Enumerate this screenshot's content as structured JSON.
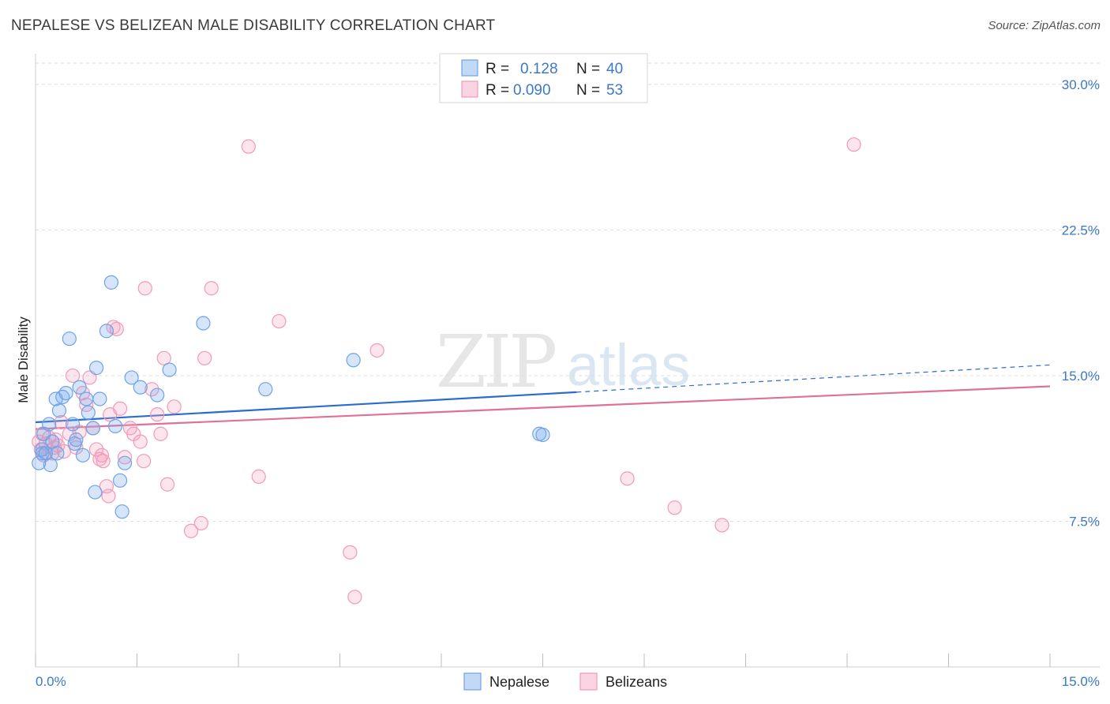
{
  "title": "NEPALESE VS BELIZEAN MALE DISABILITY CORRELATION CHART",
  "source": "Source: ZipAtlas.com",
  "watermark": {
    "zip": "ZIP",
    "atlas": "atlas"
  },
  "colors": {
    "nepalese": "#6fa3e8",
    "nepalese_fill": "rgba(120,170,235,0.30)",
    "nepalese_line": "#2b6ccf",
    "belizean": "#f19ab8",
    "belizean_fill": "rgba(245,160,190,0.28)",
    "belizean_line": "#e0709a",
    "axis_text": "#3c78c8",
    "grid": "#dddddd"
  },
  "legend": {
    "rows": [
      {
        "r_label": "R =",
        "r_value": "0.128",
        "n_label": "N =",
        "n_value": "40"
      },
      {
        "r_label": "R =",
        "r_value": "0.090",
        "n_label": "N =",
        "n_value": "53"
      }
    ]
  },
  "chart_data": {
    "type": "scatter",
    "title": "NEPALESE VS BELIZEAN MALE DISABILITY CORRELATION CHART",
    "xlabel": "",
    "ylabel": "Male Disability",
    "xlim": [
      0,
      15
    ],
    "ylim": [
      0,
      31.5
    ],
    "x_tick_labels": [
      "0.0%",
      "15.0%"
    ],
    "y_ticks": [
      7.5,
      15.0,
      22.5,
      30.0
    ],
    "y_tick_labels": [
      "7.5%",
      "15.0%",
      "22.5%",
      "30.0%"
    ],
    "grid": true,
    "legend_position": "top-center",
    "series": [
      {
        "name": "Nepalese",
        "R": 0.128,
        "N": 40,
        "trend": {
          "x0": 0,
          "y0": 12.6,
          "x1": 8.0,
          "y1": 14.15,
          "dash_to_x": 15.0,
          "dash_to_y": 15.55
        },
        "points": [
          [
            0.05,
            10.5
          ],
          [
            0.1,
            11.2
          ],
          [
            0.12,
            12.0
          ],
          [
            0.15,
            11.0
          ],
          [
            0.2,
            12.5
          ],
          [
            0.22,
            10.4
          ],
          [
            0.25,
            11.6
          ],
          [
            0.3,
            13.8
          ],
          [
            0.32,
            11.0
          ],
          [
            0.35,
            13.2
          ],
          [
            0.4,
            13.9
          ],
          [
            0.45,
            14.1
          ],
          [
            0.5,
            16.9
          ],
          [
            0.55,
            12.5
          ],
          [
            0.58,
            11.5
          ],
          [
            0.6,
            11.7
          ],
          [
            0.65,
            14.4
          ],
          [
            0.7,
            10.9
          ],
          [
            0.75,
            13.8
          ],
          [
            0.78,
            13.1
          ],
          [
            0.85,
            12.3
          ],
          [
            0.88,
            9.0
          ],
          [
            0.9,
            15.4
          ],
          [
            0.95,
            13.8
          ],
          [
            1.05,
            17.3
          ],
          [
            1.12,
            19.8
          ],
          [
            1.18,
            12.4
          ],
          [
            1.25,
            9.6
          ],
          [
            1.28,
            8.0
          ],
          [
            1.32,
            10.5
          ],
          [
            1.42,
            14.9
          ],
          [
            1.55,
            14.4
          ],
          [
            1.8,
            14.0
          ],
          [
            1.98,
            15.3
          ],
          [
            2.48,
            17.7
          ],
          [
            3.4,
            14.3
          ],
          [
            4.7,
            15.8
          ],
          [
            7.45,
            12.0
          ],
          [
            7.5,
            11.95
          ],
          [
            0.1,
            11.0
          ]
        ]
      },
      {
        "name": "Belizeans",
        "R": 0.09,
        "N": 53,
        "trend": {
          "x0": 0,
          "y0": 12.25,
          "x1": 15.0,
          "y1": 14.45
        },
        "points": [
          [
            0.05,
            11.6
          ],
          [
            0.08,
            11.2
          ],
          [
            0.1,
            12.0
          ],
          [
            0.12,
            10.9
          ],
          [
            0.15,
            11.5
          ],
          [
            0.2,
            11.8
          ],
          [
            0.25,
            11.0
          ],
          [
            0.28,
            11.3
          ],
          [
            0.3,
            11.7
          ],
          [
            0.33,
            11.4
          ],
          [
            0.38,
            12.6
          ],
          [
            0.42,
            11.1
          ],
          [
            0.5,
            12.0
          ],
          [
            0.55,
            15.0
          ],
          [
            0.6,
            11.3
          ],
          [
            0.65,
            12.1
          ],
          [
            0.7,
            14.1
          ],
          [
            0.75,
            13.5
          ],
          [
            0.8,
            14.9
          ],
          [
            0.85,
            12.3
          ],
          [
            0.9,
            11.2
          ],
          [
            0.95,
            10.7
          ],
          [
            0.98,
            10.9
          ],
          [
            1.0,
            10.6
          ],
          [
            1.05,
            9.3
          ],
          [
            1.08,
            8.8
          ],
          [
            1.1,
            13.0
          ],
          [
            1.15,
            17.5
          ],
          [
            1.2,
            17.4
          ],
          [
            1.25,
            13.3
          ],
          [
            1.32,
            10.8
          ],
          [
            1.4,
            12.3
          ],
          [
            1.45,
            12.0
          ],
          [
            1.55,
            11.6
          ],
          [
            1.6,
            10.6
          ],
          [
            1.62,
            19.5
          ],
          [
            1.72,
            14.3
          ],
          [
            1.8,
            13.0
          ],
          [
            1.85,
            12.0
          ],
          [
            1.9,
            15.9
          ],
          [
            1.95,
            9.4
          ],
          [
            2.05,
            13.4
          ],
          [
            2.3,
            7.0
          ],
          [
            2.45,
            7.4
          ],
          [
            2.5,
            15.9
          ],
          [
            2.6,
            19.5
          ],
          [
            3.15,
            26.8
          ],
          [
            3.3,
            9.8
          ],
          [
            3.6,
            17.8
          ],
          [
            4.65,
            5.9
          ],
          [
            4.72,
            3.6
          ],
          [
            5.05,
            16.3
          ],
          [
            8.75,
            9.7
          ]
        ]
      }
    ],
    "extra_points_belizean": [
      [
        9.45,
        8.2
      ],
      [
        10.15,
        7.3
      ],
      [
        12.1,
        26.9
      ]
    ]
  },
  "bottom_legend": {
    "nepalese": "Nepalese",
    "belizeans": "Belizeans"
  }
}
